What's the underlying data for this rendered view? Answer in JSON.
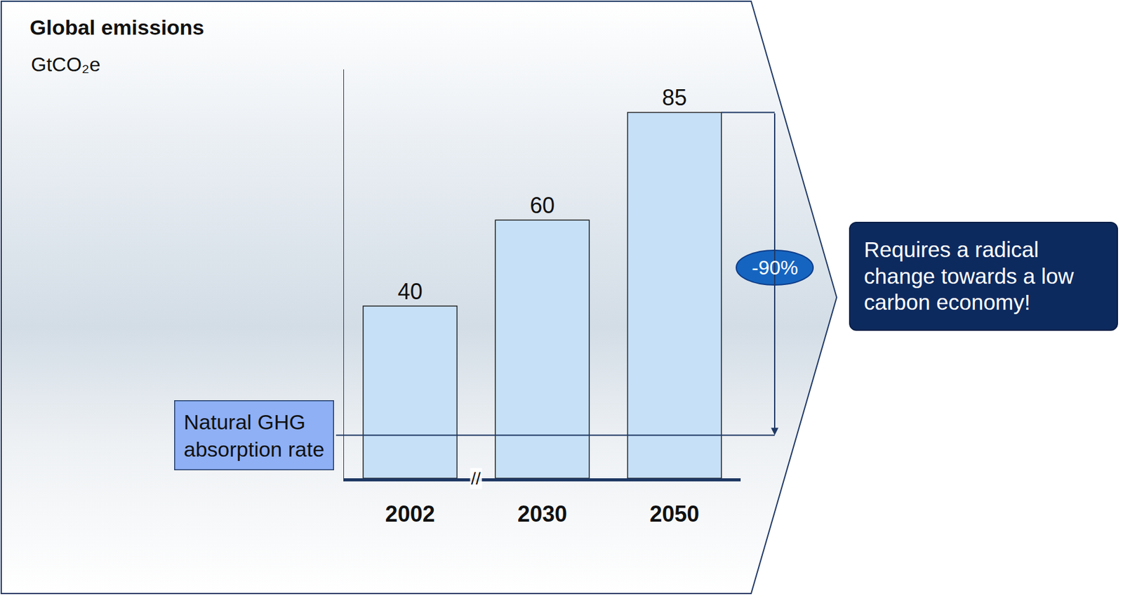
{
  "chart_data": {
    "type": "bar",
    "title": "Global emissions",
    "subtitle": "GtCO₂e",
    "categories": [
      "2002",
      "2030",
      "2050"
    ],
    "values": [
      40,
      60,
      85
    ],
    "color": "#c6e0f8",
    "ylim": [
      0,
      95
    ],
    "yticks": [],
    "tick_labels": "x",
    "data_labels": true,
    "grid": false,
    "axis_break": "//",
    "absorption": {
      "label": "Natural GHG absorption rate",
      "value": 10
    },
    "reduction": {
      "label": "-90%",
      "from": 85
    },
    "callout": "Requires a radical change towards a low carbon economy!"
  }
}
